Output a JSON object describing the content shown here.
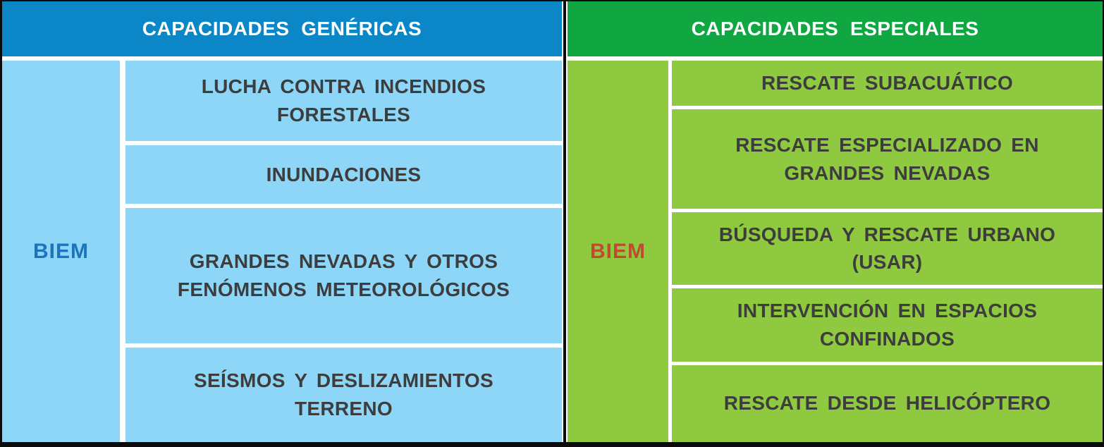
{
  "tables": [
    {
      "header": "CAPACIDADES GENÉRICAS",
      "unit_label": "BIEM",
      "rows": [
        "LUCHA CONTRA INCENDIOS\nFORESTALES",
        "INUNDACIONES",
        "GRANDES NEVADAS Y OTROS\nFENÓMENOS METEOROLÓGICOS",
        "SEÍSMOS Y DESLIZAMIENTOS\nTERRENO"
      ],
      "colors": {
        "header_bg": "#0b86c6",
        "header_text": "#ffffff",
        "cell_bg": "#8dd6f7",
        "label_text": "#1b74bc",
        "row_text": "#3d3d3d"
      }
    },
    {
      "header": "CAPACIDADES ESPECIALES",
      "unit_label": "BIEM",
      "rows": [
        "RESCATE SUBACUÁTICO",
        "RESCATE ESPECIALIZADO EN\nGRANDES NEVADAS",
        "BÚSQUEDA Y RESCATE URBANO\n(USAR)",
        "INTERVENCIÓN EN ESPACIOS\nCONFINADOS",
        "RESCATE DESDE HELICÓPTERO"
      ],
      "colors": {
        "header_bg": "#10a743",
        "header_text": "#ffffff",
        "cell_bg": "#8fc940",
        "label_text": "#c04a32",
        "row_text": "#3d3d3d"
      }
    }
  ],
  "frame_color": "#0b0b0b",
  "grid_color": "#ffffff"
}
